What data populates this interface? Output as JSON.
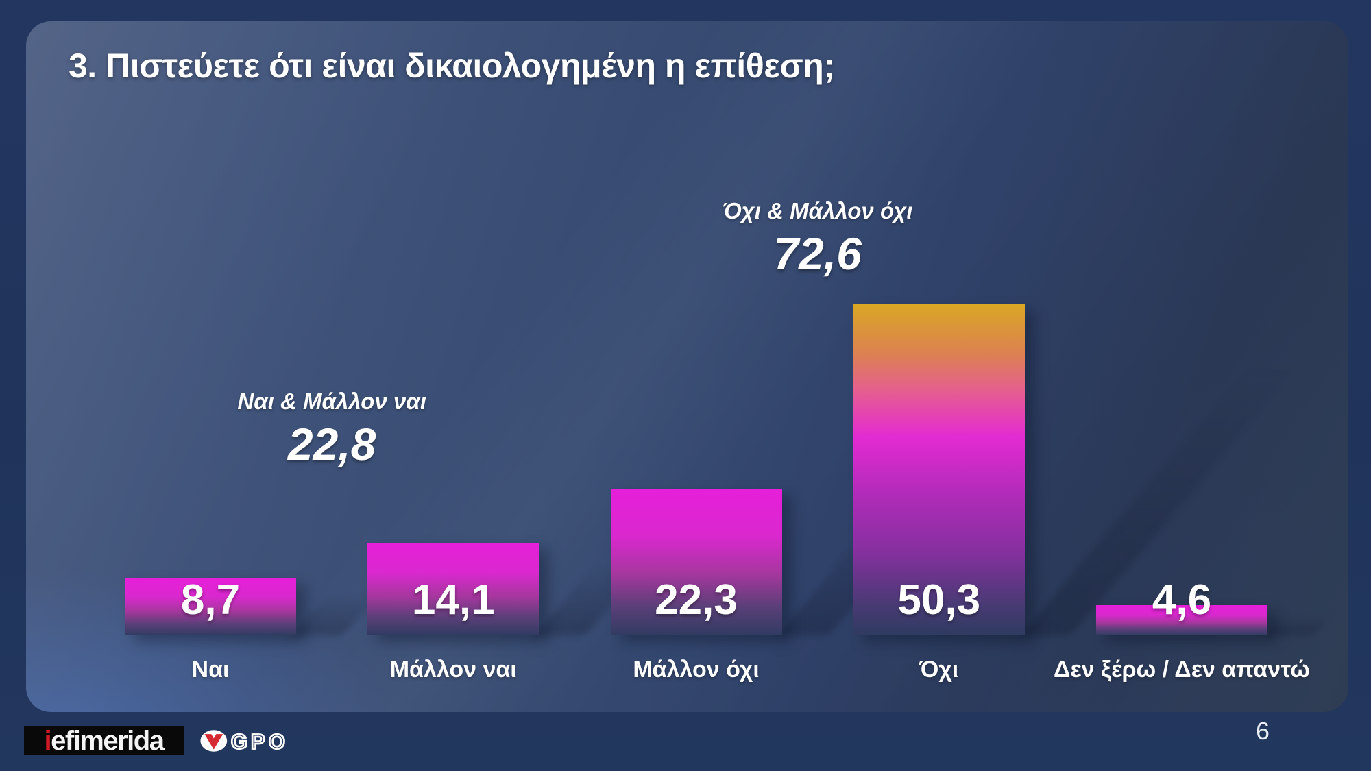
{
  "slide": {
    "title": "3. Πιστεύετε ότι είναι δικαιολογημένη η επίθεση;",
    "page_number": "6",
    "footer": {
      "iefimerida_logo_prefix": "i",
      "iefimerida_logo_rest": "efimerida",
      "gpo_logo_text": "GPO"
    },
    "colors": {
      "outer_background": "#20345b",
      "panel_top_left": "#4a5c81",
      "panel_bottom_right": "#2f3d54",
      "bar_magenta_top": "#e61fd9",
      "bar_orange_top": "#d9a724",
      "bar_dark_base": "#2f3b60",
      "logo_red": "#cf1b24",
      "text": "#ffffff"
    }
  },
  "chart_data": {
    "type": "bar",
    "title": "3. Πιστεύετε ότι είναι δικαιολογημένη η επίθεση;",
    "categories": [
      "Ναι",
      "Μάλλον ναι",
      "Μάλλον όχι",
      "Όχι",
      "Δεν ξέρω / Δεν απαντώ"
    ],
    "values": [
      8.7,
      14.1,
      22.3,
      50.3,
      4.6
    ],
    "value_labels": [
      "8,7",
      "14,1",
      "22,3",
      "50,3",
      "4,6"
    ],
    "bar_styles": [
      "magenta",
      "magenta",
      "magenta",
      "orange",
      "magenta"
    ],
    "ylim": [
      0,
      60
    ],
    "grid": false,
    "legend": false,
    "group_annotations": [
      {
        "label": "Ναι & Μάλλον ναι",
        "value": "22,8",
        "between": [
          0,
          1
        ]
      },
      {
        "label": "Όχι & Μάλλον όχι",
        "value": "72,6",
        "between": [
          2,
          3
        ]
      }
    ]
  }
}
